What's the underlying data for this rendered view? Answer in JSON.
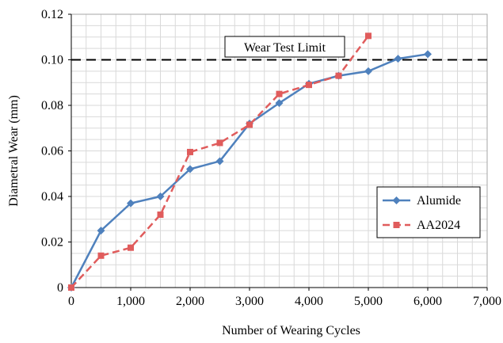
{
  "chart_data": {
    "type": "line",
    "title": "",
    "xlabel": "Number of Wearing Cycles",
    "ylabel": "Diametral Wear (mm)",
    "xlim": [
      0,
      7000
    ],
    "ylim": [
      0,
      0.12
    ],
    "x_ticks": [
      0,
      1000,
      2000,
      3000,
      4000,
      5000,
      6000,
      7000
    ],
    "x_tick_labels": [
      "0",
      "1,000",
      "2,000",
      "3,000",
      "4,000",
      "5,000",
      "6,000",
      "7,000"
    ],
    "y_ticks": [
      0,
      0.02,
      0.04,
      0.06,
      0.08,
      0.1,
      0.12
    ],
    "y_tick_labels": [
      "0",
      "0.02",
      "0.04",
      "0.06",
      "0.08",
      "0.10",
      "0.12"
    ],
    "grid": true,
    "legend_position": "lower-right",
    "series": [
      {
        "name": "Alumide",
        "color": "#4f81bd",
        "line_style": "solid",
        "marker": "diamond",
        "points": [
          [
            0,
            0.0
          ],
          [
            500,
            0.025
          ],
          [
            1000,
            0.037
          ],
          [
            1500,
            0.04
          ],
          [
            2000,
            0.052
          ],
          [
            2500,
            0.0555
          ],
          [
            3000,
            0.072
          ],
          [
            3500,
            0.081
          ],
          [
            4000,
            0.0895
          ],
          [
            4500,
            0.093
          ],
          [
            5000,
            0.095
          ],
          [
            5500,
            0.1005
          ],
          [
            6000,
            0.1025
          ]
        ]
      },
      {
        "name": "AA2024",
        "color": "#e05c5c",
        "line_style": "dashed",
        "marker": "square",
        "points": [
          [
            0,
            0.0
          ],
          [
            500,
            0.014
          ],
          [
            1000,
            0.0175
          ],
          [
            1500,
            0.032
          ],
          [
            2000,
            0.0595
          ],
          [
            2500,
            0.0635
          ],
          [
            3000,
            0.0715
          ],
          [
            3500,
            0.085
          ],
          [
            4000,
            0.089
          ],
          [
            4500,
            0.093
          ],
          [
            5000,
            0.1105
          ]
        ]
      }
    ],
    "reference_line": {
      "label": "Wear Test Limit",
      "y": 0.1,
      "color": "#000000",
      "line_style": "dashed"
    }
  }
}
